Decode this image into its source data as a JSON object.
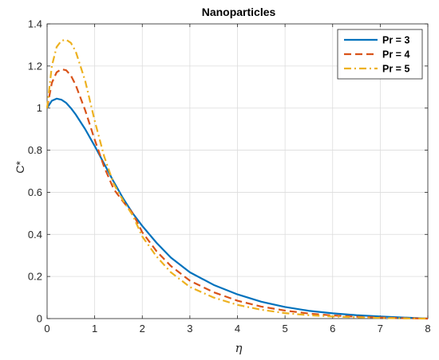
{
  "chart_data": {
    "type": "line",
    "title": "Nanoparticles",
    "xlabel": "η",
    "ylabel": "C*",
    "xlim": [
      0,
      8
    ],
    "ylim": [
      0,
      1.4
    ],
    "x_ticks": [
      "0",
      "1",
      "2",
      "3",
      "4",
      "5",
      "6",
      "7",
      "8"
    ],
    "y_ticks": [
      "0",
      "0.2",
      "0.4",
      "0.6",
      "0.8",
      "1",
      "1.2",
      "1.4"
    ],
    "grid": true,
    "legend_position": "top-right",
    "series": [
      {
        "name": "Pr = 3",
        "color": "#0072BD",
        "style": "solid",
        "x": [
          0,
          0.1,
          0.2,
          0.3,
          0.4,
          0.5,
          0.6,
          0.8,
          1.0,
          1.2,
          1.4,
          1.6,
          1.8,
          2.0,
          2.3,
          2.6,
          3.0,
          3.5,
          4.0,
          4.5,
          5.0,
          5.5,
          6.0,
          6.5,
          7.0,
          7.5,
          8.0
        ],
        "y": [
          1.0,
          1.035,
          1.045,
          1.04,
          1.025,
          1.0,
          0.97,
          0.9,
          0.82,
          0.735,
          0.65,
          0.57,
          0.5,
          0.44,
          0.36,
          0.29,
          0.22,
          0.16,
          0.115,
          0.08,
          0.055,
          0.037,
          0.025,
          0.016,
          0.01,
          0.005,
          0.0
        ]
      },
      {
        "name": "Pr = 4",
        "color": "#D95319",
        "style": "dashed",
        "x": [
          0,
          0.1,
          0.2,
          0.3,
          0.4,
          0.5,
          0.6,
          0.8,
          1.0,
          1.2,
          1.4,
          1.6,
          1.8,
          2.0,
          2.3,
          2.6,
          3.0,
          3.5,
          4.0,
          4.5,
          5.0,
          5.5,
          6.0,
          6.5,
          7.0,
          7.5,
          8.0
        ],
        "y": [
          1.0,
          1.12,
          1.17,
          1.185,
          1.18,
          1.155,
          1.11,
          0.99,
          0.85,
          0.72,
          0.615,
          0.555,
          0.5,
          0.41,
          0.32,
          0.25,
          0.18,
          0.125,
          0.085,
          0.057,
          0.038,
          0.024,
          0.015,
          0.009,
          0.005,
          0.002,
          0.0
        ]
      },
      {
        "name": "Pr = 5",
        "color": "#EDB120",
        "style": "dash-dot",
        "x": [
          0,
          0.1,
          0.2,
          0.3,
          0.4,
          0.5,
          0.6,
          0.8,
          1.0,
          1.2,
          1.4,
          1.6,
          1.8,
          2.0,
          2.3,
          2.6,
          3.0,
          3.5,
          4.0,
          4.5,
          5.0,
          5.5,
          6.0,
          6.5,
          7.0,
          7.5,
          8.0
        ],
        "y": [
          1.0,
          1.2,
          1.29,
          1.32,
          1.325,
          1.31,
          1.27,
          1.13,
          0.94,
          0.77,
          0.64,
          0.56,
          0.49,
          0.39,
          0.295,
          0.22,
          0.15,
          0.1,
          0.065,
          0.042,
          0.026,
          0.016,
          0.01,
          0.006,
          0.003,
          0.001,
          0.0
        ]
      }
    ]
  }
}
